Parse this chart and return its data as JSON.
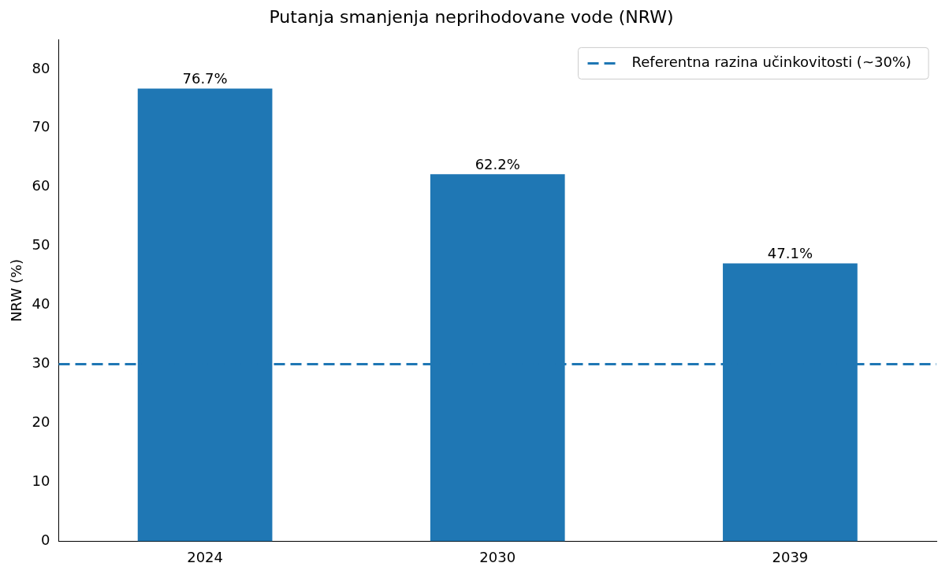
{
  "chart_data": {
    "type": "bar",
    "title": "Putanja smanjenja neprihodovane vode (NRW)",
    "ylabel": "NRW (%)",
    "categories": [
      "2024",
      "2030",
      "2039"
    ],
    "values": [
      76.7,
      62.2,
      47.1
    ],
    "color": "#1f77b4",
    "value_labels": [
      "76.7%",
      "62.2%",
      "47.1%"
    ],
    "ylim": [
      0,
      85
    ],
    "yticks": [
      0,
      10,
      20,
      30,
      40,
      50,
      60,
      70,
      80
    ],
    "grid": false,
    "legend": "top right",
    "ref_lines": [
      {
        "axis": "y",
        "value": 30,
        "label": "Referentna razina učinkovitosti (~30%)",
        "color": "#1f77b4",
        "line_style": "dashed"
      }
    ]
  }
}
